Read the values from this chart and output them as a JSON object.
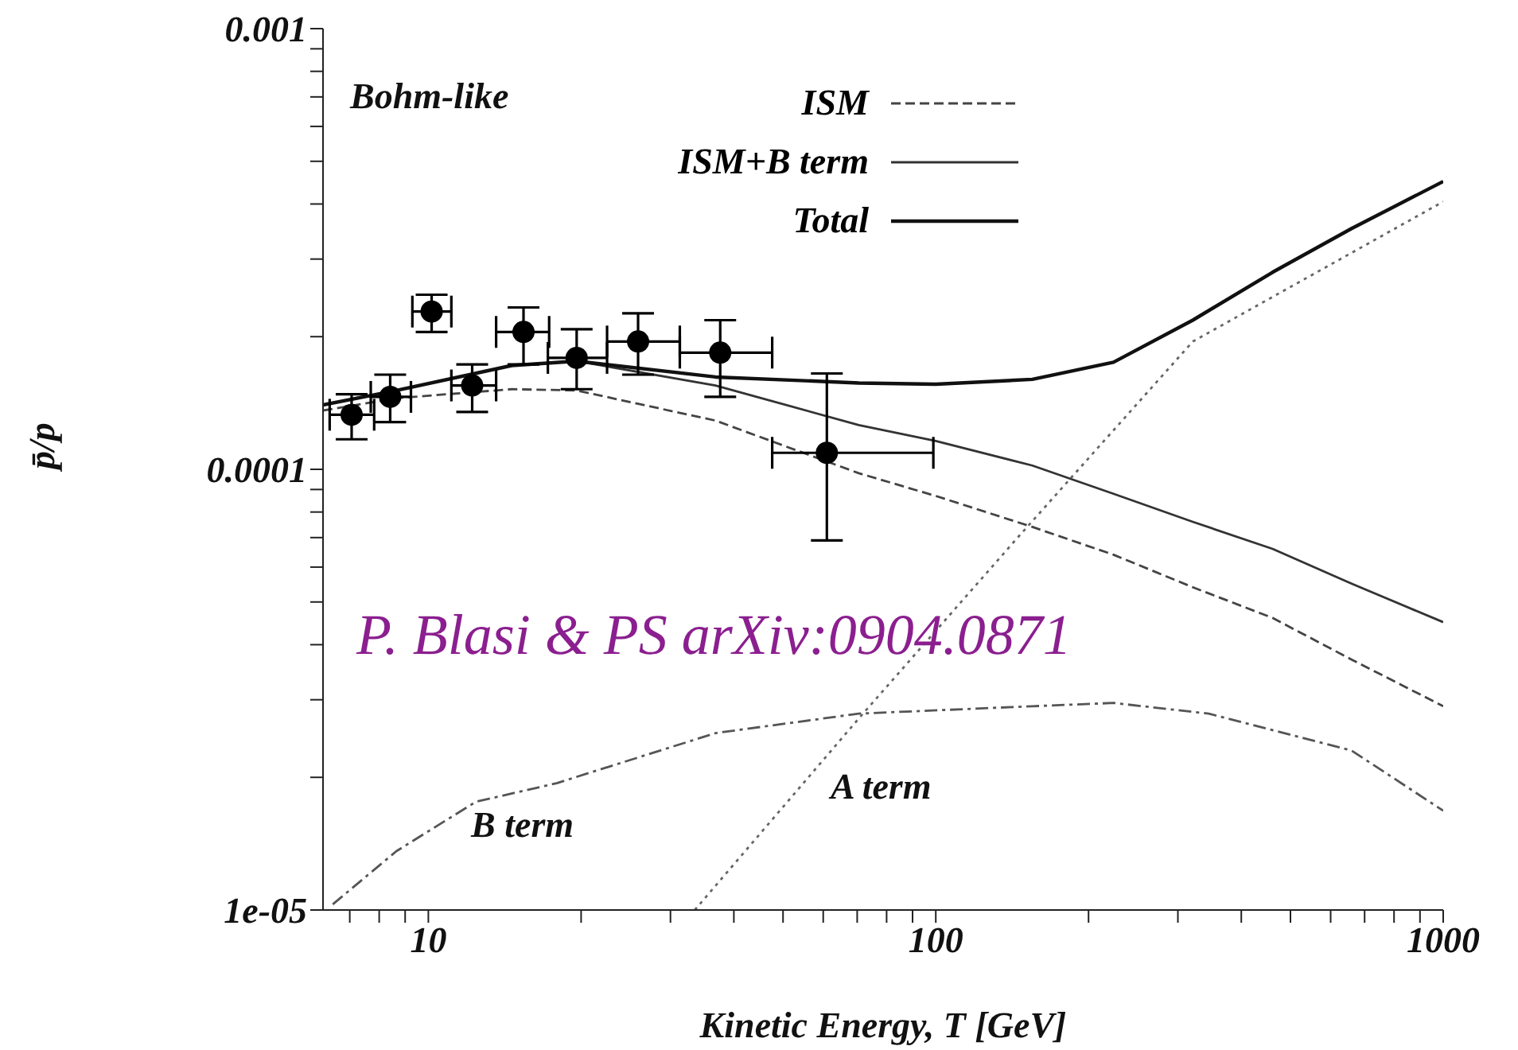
{
  "chart_data": {
    "type": "line",
    "xlabel": "Kinetic Energy, T [GeV]",
    "ylabel": "p̄/p",
    "log": "xy",
    "legend": "top right",
    "marker": "none",
    "xlim": [
      6.2,
      1000
    ],
    "ylim": [
      1e-05,
      0.001
    ],
    "xticks": [
      {
        "value": 7,
        "label": null
      },
      {
        "value": 8,
        "label": null
      },
      {
        "value": 9,
        "label": null
      },
      10,
      {
        "value": 20,
        "label": null
      },
      {
        "value": 30,
        "label": null
      },
      {
        "value": 40,
        "label": null
      },
      {
        "value": 50,
        "label": null
      },
      {
        "value": 60,
        "label": null
      },
      {
        "value": 70,
        "label": null
      },
      {
        "value": 80,
        "label": null
      },
      {
        "value": 90,
        "label": null
      },
      100,
      {
        "value": 200,
        "label": null
      },
      {
        "value": 300,
        "label": null
      },
      {
        "value": 400,
        "label": null
      },
      {
        "value": 500,
        "label": null
      },
      {
        "value": 600,
        "label": null
      },
      {
        "value": 700,
        "label": null
      },
      {
        "value": 800,
        "label": null
      },
      {
        "value": 900,
        "label": null
      },
      1000
    ],
    "yticks": [
      {
        "value": 1e-05,
        "label": "1e-05"
      },
      {
        "value": 2e-05,
        "label": null
      },
      {
        "value": 3e-05,
        "label": null
      },
      {
        "value": 4e-05,
        "label": null
      },
      {
        "value": 5e-05,
        "label": null
      },
      {
        "value": 6e-05,
        "label": null
      },
      {
        "value": 7e-05,
        "label": null
      },
      {
        "value": 8e-05,
        "label": null
      },
      {
        "value": 9e-05,
        "label": null
      },
      0.0001,
      {
        "value": 0.0002,
        "label": null
      },
      {
        "value": 0.0003,
        "label": null
      },
      {
        "value": 0.0004,
        "label": null
      },
      {
        "value": 0.0005,
        "label": null
      },
      {
        "value": 0.0006,
        "label": null
      },
      {
        "value": 0.0007,
        "label": null
      },
      {
        "value": 0.0008,
        "label": null
      },
      {
        "value": 0.0009,
        "label": null
      },
      0.001
    ],
    "annotations": [
      "Bohm-like",
      "P. Blasi & PS arXiv:0904.0871",
      "A term",
      "B term"
    ],
    "series": [
      {
        "name": "ISM",
        "line_style": "dashed",
        "color": "#444444",
        "x": [
          6.2,
          8.65,
          14.6,
          19.6,
          36.8,
          70.5,
          100,
          155,
          224,
          321,
          461,
          660,
          1000
        ],
        "values": [
          0.000136,
          0.000145,
          0.000152,
          0.000151,
          0.000129,
          9.8e-05,
          8.7e-05,
          7.4e-05,
          6.4e-05,
          5.4e-05,
          4.6e-05,
          3.7e-05,
          2.9e-05
        ]
      },
      {
        "name": "ISM+B term",
        "line_style": "solid",
        "color": "#333333",
        "x": [
          6.2,
          8.65,
          14.6,
          19.6,
          36.8,
          70.5,
          100,
          155,
          224,
          321,
          461,
          660,
          1000
        ],
        "values": [
          0.00014,
          0.000151,
          0.000172,
          0.000176,
          0.000155,
          0.000126,
          0.000116,
          0.000102,
          8.8e-05,
          7.6e-05,
          6.6e-05,
          5.5e-05,
          4.5e-05
        ]
      },
      {
        "name": "Total",
        "line_style": "solid",
        "color": "#111111",
        "x": [
          6.2,
          8.65,
          14.6,
          19.6,
          36.8,
          70.5,
          100,
          155,
          224,
          321,
          461,
          660,
          1000
        ],
        "values": [
          0.00014,
          0.000151,
          0.000172,
          0.000176,
          0.000162,
          0.000157,
          0.000156,
          0.00016,
          0.000175,
          0.000218,
          0.00028,
          0.000352,
          0.00045
        ]
      },
      {
        "line_style": "dotted",
        "color": "#666666",
        "x": [
          33.5,
          70.5,
          145,
          321,
          1000
        ],
        "values": [
          1e-05,
          2.72e-05,
          7e-05,
          0.000195,
          0.000405
        ]
      },
      {
        "line_style": "dashdot",
        "color": "#555555",
        "x": [
          6.48,
          8.65,
          12.4,
          17.9,
          36.8,
          70.5,
          155,
          224,
          345,
          660,
          1000
        ],
        "values": [
          1.03e-05,
          1.36e-05,
          1.76e-05,
          1.94e-05,
          2.52e-05,
          2.79e-05,
          2.9e-05,
          2.95e-05,
          2.79e-05,
          2.3e-05,
          1.68e-05
        ]
      },
      {
        "type": "scatter",
        "marker": "circle",
        "color": "#000000",
        "x": [
          7.06,
          8.41,
          10.15,
          12.2,
          15.4,
          19.6,
          25.9,
          37.6,
          61
        ],
        "values": [
          0.000133,
          0.000146,
          0.000228,
          0.000155,
          0.000205,
          0.000179,
          0.000195,
          0.000184,
          0.000109
        ],
        "errors": [
          [
            0.000117,
            0.000148
          ],
          [
            0.000128,
            0.000164
          ],
          [
            0.000205,
            0.000249
          ],
          [
            0.000135,
            0.000173
          ],
          [
            0.000173,
            0.000233
          ],
          [
            0.000152,
            0.000208
          ],
          [
            0.000164,
            0.000226
          ],
          [
            0.000146,
            0.000218
          ],
          [
            6.9e-05,
            0.000165
          ]
        ],
        "xerrors": [
          [
            6.39,
            7.82
          ],
          [
            7.7,
            9.24
          ],
          [
            9.3,
            11.1
          ],
          [
            11.1,
            13.6
          ],
          [
            13.6,
            17.3
          ],
          [
            17.2,
            22.5
          ],
          [
            22.5,
            31.3
          ],
          [
            31.3,
            47.6
          ],
          [
            47.6,
            98.9
          ]
        ]
      }
    ]
  }
}
